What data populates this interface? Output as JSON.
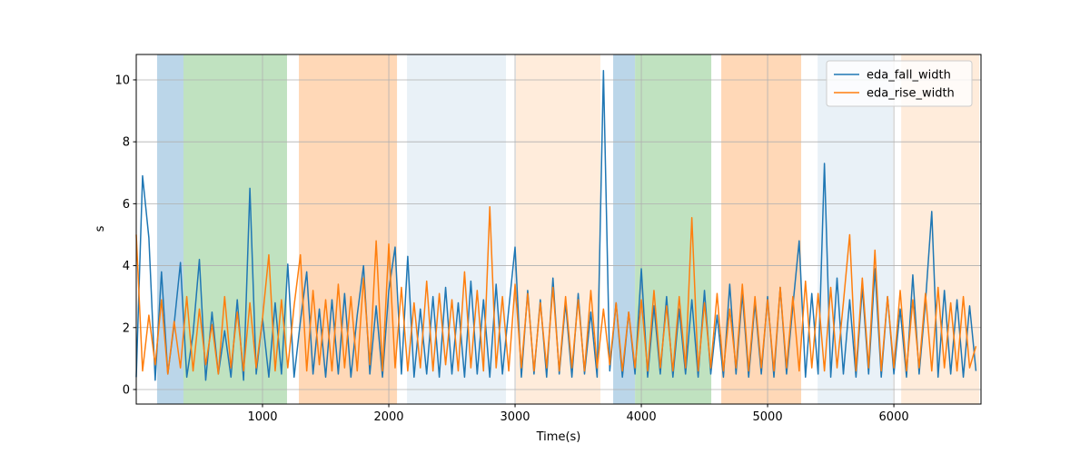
{
  "chart_data": {
    "type": "line",
    "xlabel": "Time(s)",
    "ylabel": "s",
    "xlim": [
      0,
      6690
    ],
    "ylim": [
      -0.47,
      10.82
    ],
    "xticks": [
      1000,
      2000,
      3000,
      4000,
      5000,
      6000
    ],
    "yticks": [
      0,
      2,
      4,
      6,
      8,
      10
    ],
    "grid": true,
    "legend": "upper right",
    "spans": [
      {
        "start": 165,
        "end": 374,
        "color": "#bbd6e9"
      },
      {
        "start": 374,
        "end": 1194,
        "color": "#c0e2c0"
      },
      {
        "start": 1288,
        "end": 2065,
        "color": "#ffd8b7"
      },
      {
        "start": 2144,
        "end": 2928,
        "color": "#e9f1f7"
      },
      {
        "start": 3007,
        "end": 3676,
        "color": "#ffecdb"
      },
      {
        "start": 3777,
        "end": 3950,
        "color": "#bbd6e9"
      },
      {
        "start": 3950,
        "end": 4554,
        "color": "#c0e2c0"
      },
      {
        "start": 4633,
        "end": 5266,
        "color": "#ffd8b7"
      },
      {
        "start": 5396,
        "end": 5993,
        "color": "#e9f1f7"
      },
      {
        "start": 6058,
        "end": 6676,
        "color": "#ffecdb"
      }
    ],
    "x": [
      0,
      50,
      100,
      150,
      200,
      250,
      300,
      350,
      400,
      450,
      500,
      550,
      600,
      650,
      700,
      750,
      800,
      850,
      900,
      950,
      1000,
      1050,
      1100,
      1150,
      1200,
      1250,
      1300,
      1350,
      1400,
      1450,
      1500,
      1550,
      1600,
      1650,
      1700,
      1750,
      1800,
      1850,
      1900,
      1950,
      2000,
      2050,
      2100,
      2150,
      2200,
      2250,
      2300,
      2350,
      2400,
      2450,
      2500,
      2550,
      2600,
      2650,
      2700,
      2750,
      2800,
      2850,
      2900,
      2950,
      3000,
      3050,
      3100,
      3150,
      3200,
      3250,
      3300,
      3350,
      3400,
      3450,
      3500,
      3550,
      3600,
      3650,
      3700,
      3750,
      3800,
      3850,
      3900,
      3950,
      4000,
      4050,
      4100,
      4150,
      4200,
      4250,
      4300,
      4350,
      4400,
      4450,
      4500,
      4550,
      4600,
      4650,
      4700,
      4750,
      4800,
      4850,
      4900,
      4950,
      5000,
      5050,
      5100,
      5150,
      5200,
      5250,
      5300,
      5350,
      5400,
      5450,
      5500,
      5550,
      5600,
      5650,
      5700,
      5750,
      5800,
      5850,
      5900,
      5950,
      6000,
      6050,
      6100,
      6150,
      6200,
      6250,
      6300,
      6350,
      6400,
      6450,
      6500,
      6550,
      6600,
      6650
    ],
    "series": [
      {
        "name": "eda_fall_width",
        "color": "#1f77b4",
        "values": [
          0.4,
          6.9,
          4.9,
          0.3,
          3.8,
          0.5,
          2.1,
          4.1,
          0.4,
          1.8,
          4.2,
          0.3,
          2.5,
          0.5,
          1.9,
          0.4,
          2.9,
          0.3,
          6.5,
          0.5,
          2.3,
          0.4,
          2.8,
          0.5,
          4.05,
          0.4,
          2.2,
          3.8,
          0.5,
          2.6,
          0.4,
          2.9,
          0.5,
          3.1,
          0.4,
          2.4,
          4.0,
          0.5,
          2.7,
          0.4,
          3.2,
          4.6,
          0.5,
          4.3,
          0.4,
          2.6,
          0.5,
          3.0,
          0.4,
          3.3,
          0.5,
          2.8,
          0.4,
          3.5,
          0.5,
          2.9,
          0.4,
          3.4,
          0.5,
          2.6,
          4.6,
          0.4,
          3.2,
          0.5,
          2.9,
          0.4,
          3.6,
          0.5,
          2.8,
          0.4,
          3.1,
          0.5,
          2.5,
          0.4,
          10.3,
          0.6,
          2.8,
          0.4,
          2.5,
          0.5,
          3.9,
          0.4,
          2.7,
          0.5,
          3.0,
          0.4,
          2.6,
          0.5,
          2.9,
          0.4,
          3.2,
          0.5,
          2.4,
          0.4,
          3.4,
          0.5,
          3.1,
          0.4,
          2.8,
          0.5,
          3.0,
          0.4,
          3.3,
          0.5,
          2.7,
          4.8,
          0.4,
          3.1,
          0.5,
          7.3,
          0.4,
          3.6,
          0.5,
          2.9,
          0.4,
          3.3,
          0.5,
          3.9,
          0.4,
          3.0,
          0.5,
          2.6,
          0.4,
          3.7,
          0.5,
          2.8,
          5.75,
          0.4,
          3.2,
          0.5,
          2.9,
          0.4,
          2.7,
          0.6
        ]
      },
      {
        "name": "eda_rise_width",
        "color": "#ff7f0e",
        "values": [
          5.0,
          0.6,
          2.4,
          0.8,
          2.9,
          0.5,
          2.2,
          0.7,
          3.0,
          0.6,
          2.6,
          0.8,
          2.1,
          0.5,
          3.0,
          0.7,
          2.5,
          0.6,
          2.8,
          0.7,
          2.3,
          4.35,
          0.6,
          2.9,
          0.7,
          2.7,
          4.35,
          0.6,
          3.2,
          0.8,
          2.9,
          0.6,
          3.4,
          0.7,
          3.0,
          0.6,
          3.6,
          0.8,
          4.8,
          0.6,
          4.7,
          0.7,
          3.3,
          0.6,
          2.8,
          0.7,
          3.5,
          0.6,
          3.1,
          0.8,
          2.9,
          0.6,
          3.8,
          0.7,
          3.2,
          0.6,
          5.9,
          0.7,
          3.0,
          0.6,
          3.4,
          0.7,
          3.1,
          0.6,
          2.8,
          0.7,
          3.3,
          0.6,
          3.0,
          0.7,
          2.9,
          0.6,
          3.2,
          0.7,
          2.6,
          0.8,
          2.8,
          0.6,
          2.5,
          0.7,
          2.9,
          0.6,
          3.2,
          0.7,
          2.7,
          0.6,
          3.0,
          0.7,
          5.55,
          0.6,
          2.8,
          0.7,
          3.1,
          0.6,
          2.6,
          0.7,
          3.4,
          0.6,
          3.0,
          0.7,
          2.9,
          0.6,
          3.3,
          0.7,
          3.0,
          0.6,
          3.5,
          0.7,
          3.1,
          0.6,
          3.3,
          0.7,
          2.8,
          5.0,
          0.6,
          3.6,
          0.7,
          4.5,
          0.6,
          3.0,
          0.7,
          3.2,
          0.6,
          2.9,
          0.7,
          3.1,
          0.6,
          3.3,
          0.7,
          2.8,
          0.6,
          3.0,
          0.7,
          1.4
        ]
      }
    ]
  }
}
